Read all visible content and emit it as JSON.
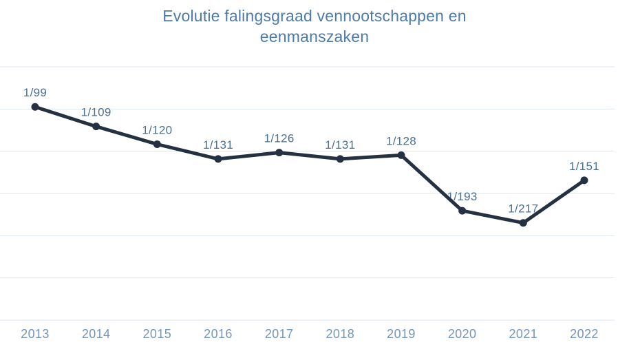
{
  "page": {
    "background": "#ffffff"
  },
  "chart_data": {
    "type": "line",
    "title": "Evolutie falingsgraad vennootschappen en eenmanszaken",
    "categories": [
      "2013",
      "2014",
      "2015",
      "2016",
      "2017",
      "2018",
      "2019",
      "2020",
      "2021",
      "2022"
    ],
    "series": [
      {
        "name": "falingsgraad",
        "point_labels": [
          "1/99",
          "1/109",
          "1/120",
          "1/131",
          "1/126",
          "1/131",
          "1/128",
          "1/193",
          "1/217",
          "1/151"
        ],
        "values": [
          0.010101,
          0.009174,
          0.008333,
          0.007634,
          0.007937,
          0.007634,
          0.007813,
          0.005181,
          0.004608,
          0.006623
        ]
      }
    ],
    "xlabel": "",
    "ylabel": "",
    "ylim": [
      0,
      0.012
    ],
    "grid_step": 0.002,
    "grid": "horizontal-only",
    "y_axis_tick_labels": "none",
    "legend": "none",
    "colors": {
      "title": "#4d7bab",
      "line": "#253140",
      "point": "#253140",
      "point_label": "#4a7096",
      "axis_label": "#7596bb",
      "gridline": "#dde5ec",
      "background": "#ffffff"
    }
  }
}
